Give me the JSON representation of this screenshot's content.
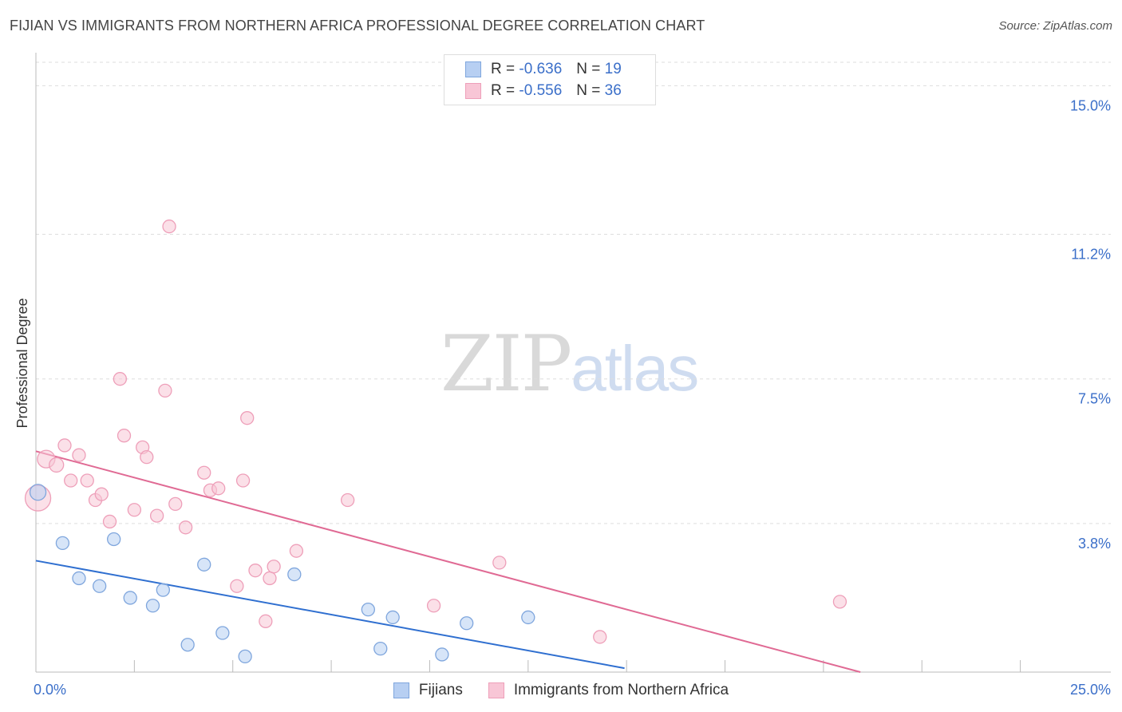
{
  "header": {
    "title": "FIJIAN VS IMMIGRANTS FROM NORTHERN AFRICA PROFESSIONAL DEGREE CORRELATION CHART",
    "source": "Source: ZipAtlas.com"
  },
  "watermark": {
    "zip": "ZIP",
    "atlas": "atlas"
  },
  "legend": {
    "fijians": {
      "r_label": "R =",
      "r_value": "-0.636",
      "n_label": "N =",
      "n_value": "19"
    },
    "immigrants": {
      "r_label": "R =",
      "r_value": "-0.556",
      "n_label": "N =",
      "n_value": "36"
    }
  },
  "colors": {
    "fijians_fill": "#b7cff2",
    "fijians_stroke": "#7fa6dd",
    "fijians_line": "#2f6fd0",
    "immigrants_fill": "#f8c6d6",
    "immigrants_stroke": "#ee9fb9",
    "immigrants_line": "#e06a94",
    "tick_label": "#3b6fc9",
    "grid": "#dddddd"
  },
  "chart_data": {
    "type": "scatter",
    "title": "FIJIAN VS IMMIGRANTS FROM NORTHERN AFRICA PROFESSIONAL DEGREE CORRELATION CHART",
    "xlabel": "",
    "ylabel": "Professional Degree",
    "xlim": [
      0,
      25
    ],
    "ylim": [
      0,
      15.6
    ],
    "x_tick_labels": [
      {
        "value": 0,
        "label": "0.0%"
      },
      {
        "value": 25,
        "label": "25.0%"
      }
    ],
    "y_tick_labels": [
      {
        "value": 3.8,
        "label": "3.8%"
      },
      {
        "value": 7.5,
        "label": "7.5%"
      },
      {
        "value": 11.2,
        "label": "11.2%"
      },
      {
        "value": 15.0,
        "label": "15.0%"
      }
    ],
    "x_minor_ticks": [
      2.4,
      4.8,
      7.2,
      9.6,
      12.0,
      14.4,
      16.8,
      19.2,
      21.6,
      24.0
    ],
    "series": [
      {
        "name": "Fijians",
        "points": [
          {
            "x": 0.05,
            "y": 4.6,
            "size": 10
          },
          {
            "x": 0.65,
            "y": 3.3,
            "size": 8
          },
          {
            "x": 1.05,
            "y": 2.4,
            "size": 8
          },
          {
            "x": 1.55,
            "y": 2.2,
            "size": 8
          },
          {
            "x": 1.9,
            "y": 3.4,
            "size": 8
          },
          {
            "x": 2.3,
            "y": 1.9,
            "size": 8
          },
          {
            "x": 2.85,
            "y": 1.7,
            "size": 8
          },
          {
            "x": 3.1,
            "y": 2.1,
            "size": 8
          },
          {
            "x": 3.7,
            "y": 0.7,
            "size": 8
          },
          {
            "x": 4.1,
            "y": 2.75,
            "size": 8
          },
          {
            "x": 4.55,
            "y": 1.0,
            "size": 8
          },
          {
            "x": 5.1,
            "y": 0.4,
            "size": 8
          },
          {
            "x": 6.3,
            "y": 2.5,
            "size": 8
          },
          {
            "x": 8.1,
            "y": 1.6,
            "size": 8
          },
          {
            "x": 8.4,
            "y": 0.6,
            "size": 8
          },
          {
            "x": 8.7,
            "y": 1.4,
            "size": 8
          },
          {
            "x": 9.9,
            "y": 0.45,
            "size": 8
          },
          {
            "x": 10.5,
            "y": 1.25,
            "size": 8
          },
          {
            "x": 12.0,
            "y": 1.4,
            "size": 8
          }
        ],
        "trendline": {
          "x0": 0,
          "y0": 2.85,
          "x1": 14.35,
          "y1": 0.1
        }
      },
      {
        "name": "Immigrants from Northern Africa",
        "points": [
          {
            "x": 0.05,
            "y": 4.45,
            "size": 16
          },
          {
            "x": 0.25,
            "y": 5.45,
            "size": 11
          },
          {
            "x": 0.5,
            "y": 5.3,
            "size": 9
          },
          {
            "x": 0.7,
            "y": 5.8,
            "size": 8
          },
          {
            "x": 0.85,
            "y": 4.9,
            "size": 8
          },
          {
            "x": 1.05,
            "y": 5.55,
            "size": 8
          },
          {
            "x": 1.25,
            "y": 4.9,
            "size": 8
          },
          {
            "x": 1.45,
            "y": 4.4,
            "size": 8
          },
          {
            "x": 1.6,
            "y": 4.55,
            "size": 8
          },
          {
            "x": 1.8,
            "y": 3.85,
            "size": 8
          },
          {
            "x": 2.05,
            "y": 7.5,
            "size": 8
          },
          {
            "x": 2.15,
            "y": 6.05,
            "size": 8
          },
          {
            "x": 2.4,
            "y": 4.15,
            "size": 8
          },
          {
            "x": 2.6,
            "y": 5.75,
            "size": 8
          },
          {
            "x": 2.7,
            "y": 5.5,
            "size": 8
          },
          {
            "x": 2.95,
            "y": 4.0,
            "size": 8
          },
          {
            "x": 3.15,
            "y": 7.2,
            "size": 8
          },
          {
            "x": 3.25,
            "y": 11.4,
            "size": 8
          },
          {
            "x": 3.4,
            "y": 4.3,
            "size": 8
          },
          {
            "x": 3.65,
            "y": 3.7,
            "size": 8
          },
          {
            "x": 4.1,
            "y": 5.1,
            "size": 8
          },
          {
            "x": 4.25,
            "y": 4.65,
            "size": 8
          },
          {
            "x": 4.45,
            "y": 4.7,
            "size": 8
          },
          {
            "x": 4.9,
            "y": 2.2,
            "size": 8
          },
          {
            "x": 5.05,
            "y": 4.9,
            "size": 8
          },
          {
            "x": 5.15,
            "y": 6.5,
            "size": 8
          },
          {
            "x": 5.35,
            "y": 2.6,
            "size": 8
          },
          {
            "x": 5.6,
            "y": 1.3,
            "size": 8
          },
          {
            "x": 5.7,
            "y": 2.4,
            "size": 8
          },
          {
            "x": 5.8,
            "y": 2.7,
            "size": 8
          },
          {
            "x": 6.35,
            "y": 3.1,
            "size": 8
          },
          {
            "x": 7.6,
            "y": 4.4,
            "size": 8
          },
          {
            "x": 9.7,
            "y": 1.7,
            "size": 8
          },
          {
            "x": 11.3,
            "y": 2.8,
            "size": 8
          },
          {
            "x": 13.75,
            "y": 0.9,
            "size": 8
          },
          {
            "x": 19.6,
            "y": 1.8,
            "size": 8
          }
        ],
        "trendline": {
          "x0": 0,
          "y0": 5.65,
          "x1": 20.1,
          "y1": 0.0
        }
      }
    ],
    "legend": [
      "Fijians",
      "Immigrants from Northern Africa"
    ]
  }
}
